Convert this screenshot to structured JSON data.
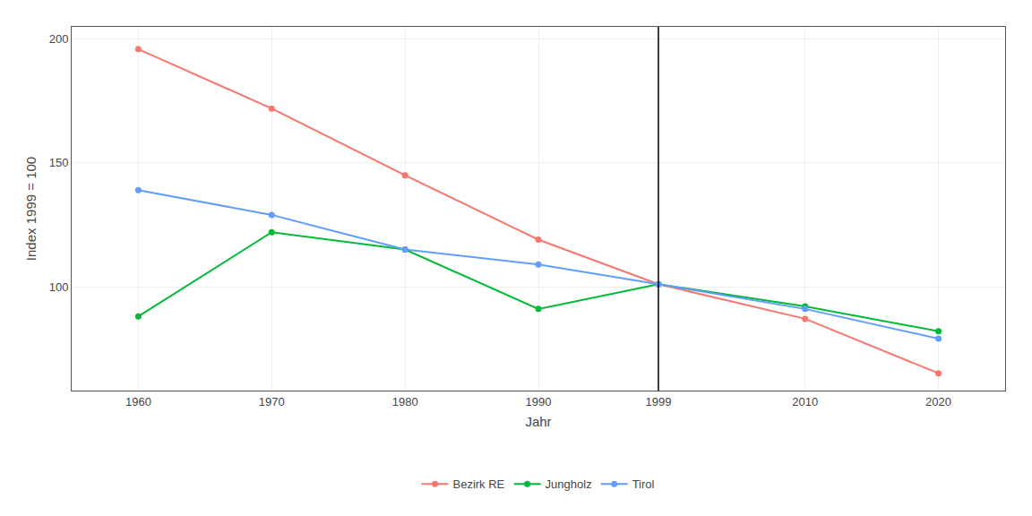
{
  "chart_data": {
    "type": "line",
    "x": [
      1960,
      1970,
      1980,
      1990,
      1999,
      2010,
      2020
    ],
    "series": [
      {
        "name": "Bezirk RE",
        "color": "#F8766D",
        "values": [
          196,
          172,
          145,
          119,
          101,
          87,
          65
        ]
      },
      {
        "name": "Jungholz",
        "color": "#00BA38",
        "values": [
          88,
          122,
          115,
          91,
          101,
          92,
          82
        ]
      },
      {
        "name": "Tirol",
        "color": "#619CFF",
        "values": [
          139,
          129,
          115,
          109,
          101,
          91,
          79
        ]
      }
    ],
    "x_label": "Jahr",
    "y_label": "Index 1999 = 100",
    "xlim": [
      1955,
      2025
    ],
    "xticks": [
      1960,
      1970,
      1980,
      1990,
      1999,
      2010,
      2020
    ],
    "ylim": [
      58,
      205
    ],
    "yticks": [
      100,
      150,
      200
    ],
    "vline": 1999,
    "grid": true,
    "legend": "bottom",
    "marker": "circle",
    "line_style": "solid"
  }
}
